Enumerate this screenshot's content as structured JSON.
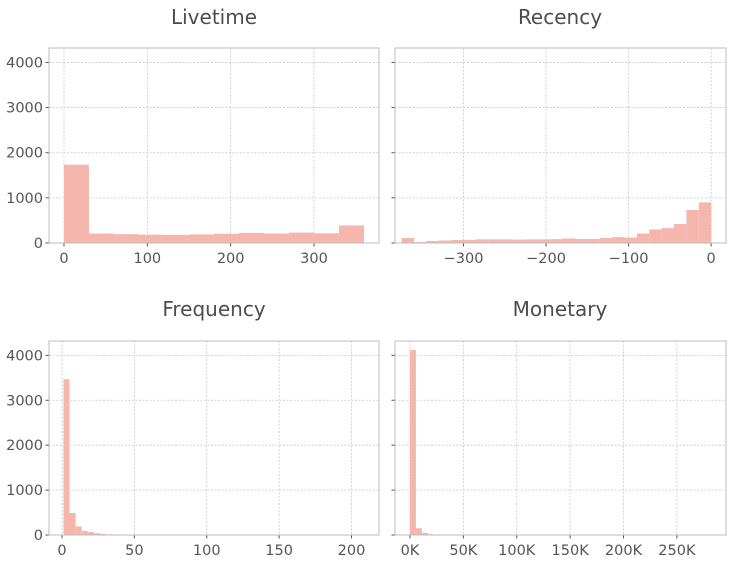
{
  "chart_data": [
    {
      "type": "bar",
      "title": "Livetime",
      "xlim": [
        -18,
        378
      ],
      "ylim": [
        0,
        4320
      ],
      "xticks": [
        0,
        100,
        200,
        300
      ],
      "xtick_labels": [
        "0",
        "100",
        "200",
        "300"
      ],
      "yticks": [
        0,
        1000,
        2000,
        3000,
        4000
      ],
      "ytick_labels": [
        "0",
        "1000",
        "2000",
        "3000",
        "4000"
      ],
      "show_yticklabels": true,
      "grid": true,
      "bin_edges": [
        0,
        30,
        60,
        90,
        120,
        150,
        180,
        210,
        240,
        270,
        300,
        330,
        360
      ],
      "values": [
        1735,
        210,
        195,
        185,
        180,
        190,
        205,
        225,
        210,
        230,
        215,
        390
      ],
      "color": "#f4b6ad"
    },
    {
      "type": "bar",
      "title": "Recency",
      "xlim": [
        -383,
        18
      ],
      "ylim": [
        0,
        4320
      ],
      "xticks": [
        -300,
        -200,
        -100,
        0
      ],
      "xtick_labels": [
        "−300",
        "−200",
        "−100",
        "0"
      ],
      "yticks": [
        0,
        1000,
        2000,
        3000,
        4000
      ],
      "ytick_labels": [
        "0",
        "1000",
        "2000",
        "3000",
        "4000"
      ],
      "show_yticklabels": false,
      "grid": true,
      "bin_edges": [
        -375,
        -360,
        -345,
        -330,
        -315,
        -300,
        -285,
        -270,
        -255,
        -240,
        -225,
        -210,
        -195,
        -180,
        -165,
        -150,
        -135,
        -120,
        -105,
        -90,
        -75,
        -60,
        -45,
        -30,
        -15,
        0
      ],
      "values": [
        110,
        20,
        45,
        55,
        65,
        70,
        80,
        80,
        80,
        75,
        80,
        80,
        85,
        100,
        90,
        90,
        110,
        130,
        120,
        210,
        300,
        330,
        420,
        730,
        900
      ],
      "color": "#f4b6ad"
    },
    {
      "type": "bar",
      "title": "Frequency",
      "xlim": [
        -9,
        219
      ],
      "ylim": [
        0,
        4320
      ],
      "xticks": [
        0,
        50,
        100,
        150,
        200
      ],
      "xtick_labels": [
        "0",
        "50",
        "100",
        "150",
        "200"
      ],
      "yticks": [
        0,
        1000,
        2000,
        3000,
        4000
      ],
      "ytick_labels": [
        "0",
        "1000",
        "2000",
        "3000",
        "4000"
      ],
      "show_yticklabels": true,
      "grid": true,
      "bin_edges": [
        1,
        5.2,
        9.4,
        13.6,
        17.8,
        22,
        26.2,
        30.4,
        34.6,
        38.8,
        43
      ],
      "values": [
        3470,
        490,
        190,
        90,
        65,
        40,
        25,
        15,
        12,
        8
      ],
      "color": "#f4b6ad"
    },
    {
      "type": "bar",
      "title": "Monetary",
      "xlim": [
        -14000,
        296000
      ],
      "ylim": [
        0,
        4320
      ],
      "xticks": [
        0,
        50000,
        100000,
        150000,
        200000,
        250000
      ],
      "xtick_labels": [
        "0K",
        "50K",
        "100K",
        "150K",
        "200K",
        "250K"
      ],
      "yticks": [
        0,
        1000,
        2000,
        3000,
        4000
      ],
      "ytick_labels": [
        "0",
        "1000",
        "2000",
        "3000",
        "4000"
      ],
      "show_yticklabels": false,
      "grid": true,
      "bin_edges": [
        0,
        5600,
        11200,
        16800,
        22400,
        28000,
        33600,
        39200,
        44800
      ],
      "values": [
        4120,
        150,
        45,
        18,
        12,
        10,
        6,
        4
      ],
      "color": "#f4b6ad"
    }
  ]
}
